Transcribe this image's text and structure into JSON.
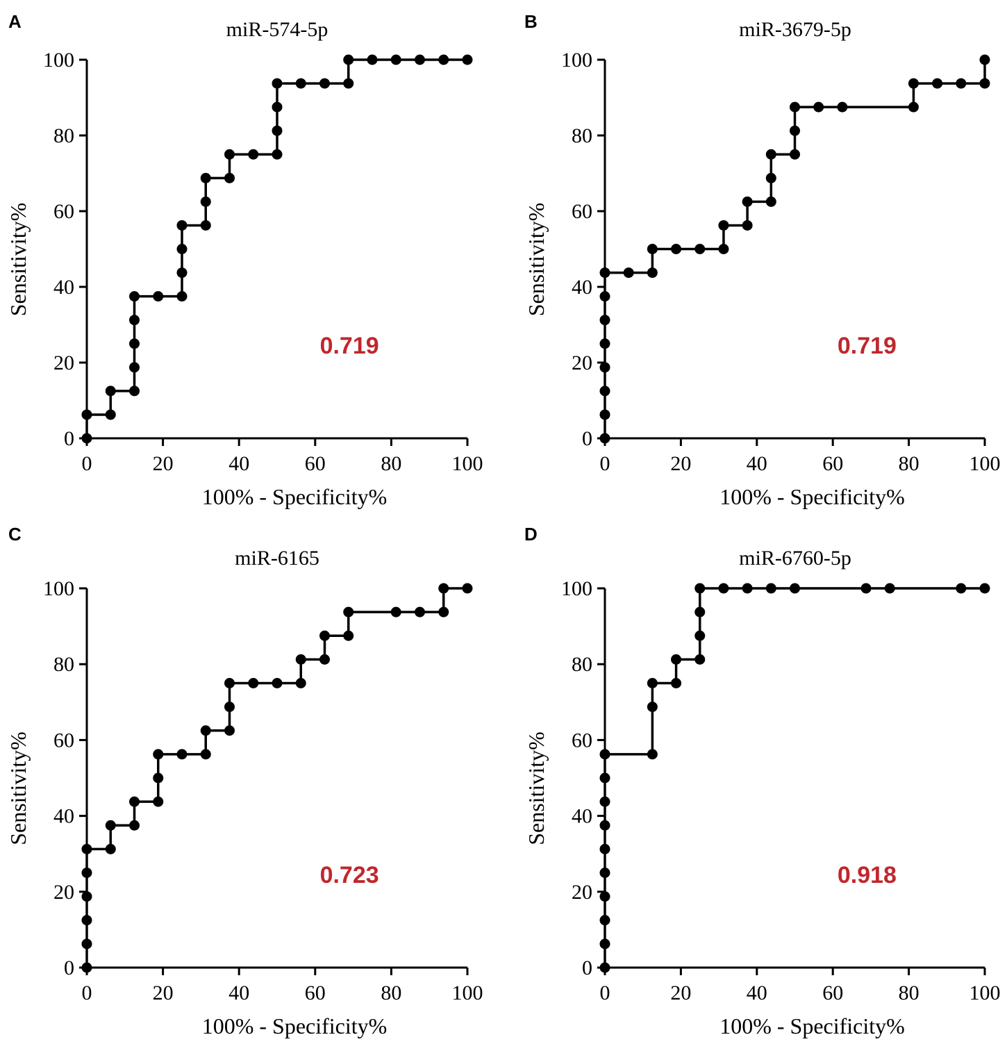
{
  "figure": {
    "auc_color": "#c0272d"
  },
  "chart_data": [
    {
      "type": "line",
      "panel": "A",
      "title": "miR-574-5p",
      "xlabel": "100% - Specificity%",
      "ylabel": "Sensitivity%",
      "xlim": [
        0,
        100
      ],
      "ylim": [
        0,
        100
      ],
      "xticks": [
        0,
        20,
        40,
        60,
        80,
        100
      ],
      "yticks": [
        0,
        20,
        40,
        60,
        80,
        100
      ],
      "auc": "0.719",
      "points": [
        [
          0,
          0
        ],
        [
          0,
          6.25
        ],
        [
          6.25,
          6.25
        ],
        [
          6.25,
          12.5
        ],
        [
          12.5,
          12.5
        ],
        [
          12.5,
          18.75
        ],
        [
          12.5,
          25
        ],
        [
          12.5,
          31.25
        ],
        [
          12.5,
          37.5
        ],
        [
          18.75,
          37.5
        ],
        [
          25,
          37.5
        ],
        [
          25,
          43.75
        ],
        [
          25,
          50
        ],
        [
          25,
          56.25
        ],
        [
          31.25,
          56.25
        ],
        [
          31.25,
          62.5
        ],
        [
          31.25,
          68.75
        ],
        [
          37.5,
          68.75
        ],
        [
          37.5,
          75
        ],
        [
          43.75,
          75
        ],
        [
          50,
          75
        ],
        [
          50,
          81.25
        ],
        [
          50,
          87.5
        ],
        [
          50,
          93.75
        ],
        [
          56.25,
          93.75
        ],
        [
          62.5,
          93.75
        ],
        [
          68.75,
          93.75
        ],
        [
          68.75,
          100
        ],
        [
          75,
          100
        ],
        [
          81.25,
          100
        ],
        [
          87.5,
          100
        ],
        [
          93.75,
          100
        ],
        [
          100,
          100
        ]
      ]
    },
    {
      "type": "line",
      "panel": "B",
      "title": "miR-3679-5p",
      "xlabel": "100% - Specificity%",
      "ylabel": "Sensitivity%",
      "xlim": [
        0,
        100
      ],
      "ylim": [
        0,
        100
      ],
      "xticks": [
        0,
        20,
        40,
        60,
        80,
        100
      ],
      "yticks": [
        0,
        20,
        40,
        60,
        80,
        100
      ],
      "auc": "0.719",
      "points": [
        [
          0,
          0
        ],
        [
          0,
          6.25
        ],
        [
          0,
          12.5
        ],
        [
          0,
          18.75
        ],
        [
          0,
          25
        ],
        [
          0,
          31.25
        ],
        [
          0,
          37.5
        ],
        [
          0,
          43.75
        ],
        [
          6.25,
          43.75
        ],
        [
          12.5,
          43.75
        ],
        [
          12.5,
          50
        ],
        [
          18.75,
          50
        ],
        [
          25,
          50
        ],
        [
          31.25,
          50
        ],
        [
          31.25,
          56.25
        ],
        [
          37.5,
          56.25
        ],
        [
          37.5,
          62.5
        ],
        [
          43.75,
          62.5
        ],
        [
          43.75,
          68.75
        ],
        [
          43.75,
          75
        ],
        [
          50,
          75
        ],
        [
          50,
          81.25
        ],
        [
          50,
          87.5
        ],
        [
          56.25,
          87.5
        ],
        [
          62.5,
          87.5
        ],
        [
          81.25,
          87.5
        ],
        [
          81.25,
          93.75
        ],
        [
          87.5,
          93.75
        ],
        [
          93.75,
          93.75
        ],
        [
          100,
          93.75
        ],
        [
          100,
          100
        ]
      ]
    },
    {
      "type": "line",
      "panel": "C",
      "title": "miR-6165",
      "xlabel": "100% - Specificity%",
      "ylabel": "Sensitivity%",
      "xlim": [
        0,
        100
      ],
      "ylim": [
        0,
        100
      ],
      "xticks": [
        0,
        20,
        40,
        60,
        80,
        100
      ],
      "yticks": [
        0,
        20,
        40,
        60,
        80,
        100
      ],
      "auc": "0.723",
      "points": [
        [
          0,
          0
        ],
        [
          0,
          6.25
        ],
        [
          0,
          12.5
        ],
        [
          0,
          18.75
        ],
        [
          0,
          25
        ],
        [
          0,
          31.25
        ],
        [
          6.25,
          31.25
        ],
        [
          6.25,
          37.5
        ],
        [
          12.5,
          37.5
        ],
        [
          12.5,
          43.75
        ],
        [
          18.75,
          43.75
        ],
        [
          18.75,
          50
        ],
        [
          18.75,
          56.25
        ],
        [
          25,
          56.25
        ],
        [
          31.25,
          56.25
        ],
        [
          31.25,
          62.5
        ],
        [
          37.5,
          62.5
        ],
        [
          37.5,
          68.75
        ],
        [
          37.5,
          75
        ],
        [
          43.75,
          75
        ],
        [
          50,
          75
        ],
        [
          56.25,
          75
        ],
        [
          56.25,
          81.25
        ],
        [
          62.5,
          81.25
        ],
        [
          62.5,
          87.5
        ],
        [
          68.75,
          87.5
        ],
        [
          68.75,
          93.75
        ],
        [
          81.25,
          93.75
        ],
        [
          87.5,
          93.75
        ],
        [
          93.75,
          93.75
        ],
        [
          93.75,
          100
        ],
        [
          100,
          100
        ]
      ]
    },
    {
      "type": "line",
      "panel": "D",
      "title": "miR-6760-5p",
      "xlabel": "100% - Specificity%",
      "ylabel": "Sensitivity%",
      "xlim": [
        0,
        100
      ],
      "ylim": [
        0,
        100
      ],
      "xticks": [
        0,
        20,
        40,
        60,
        80,
        100
      ],
      "yticks": [
        0,
        20,
        40,
        60,
        80,
        100
      ],
      "auc": "0.918",
      "points": [
        [
          0,
          0
        ],
        [
          0,
          6.25
        ],
        [
          0,
          12.5
        ],
        [
          0,
          18.75
        ],
        [
          0,
          25
        ],
        [
          0,
          31.25
        ],
        [
          0,
          37.5
        ],
        [
          0,
          43.75
        ],
        [
          0,
          50
        ],
        [
          0,
          56.25
        ],
        [
          12.5,
          56.25
        ],
        [
          12.5,
          68.75
        ],
        [
          12.5,
          75
        ],
        [
          18.75,
          75
        ],
        [
          18.75,
          81.25
        ],
        [
          25,
          81.25
        ],
        [
          25,
          87.5
        ],
        [
          25,
          93.75
        ],
        [
          25,
          100
        ],
        [
          31.25,
          100
        ],
        [
          37.5,
          100
        ],
        [
          43.75,
          100
        ],
        [
          50,
          100
        ],
        [
          68.75,
          100
        ],
        [
          75,
          100
        ],
        [
          93.75,
          100
        ],
        [
          100,
          100
        ]
      ]
    }
  ]
}
